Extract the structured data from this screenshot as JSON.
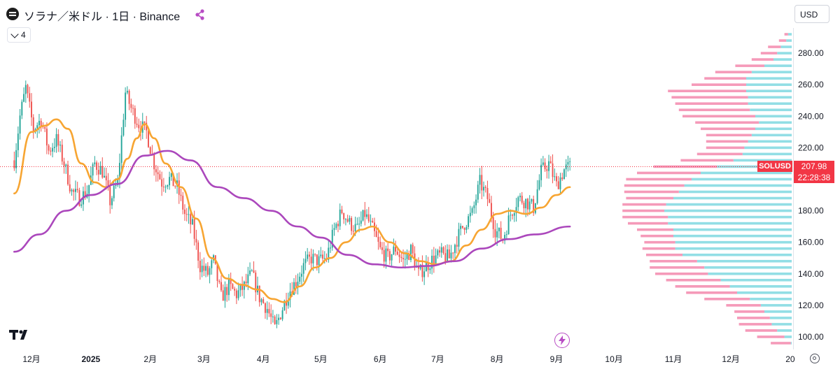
{
  "header": {
    "title": "ソラナ／米ドル · 1日 · Binance",
    "indicator_count": "4",
    "currency": "USD"
  },
  "last_price": {
    "symbol_label": "SOLUSD",
    "price": "207.98",
    "countdown": "22:28:38"
  },
  "colors": {
    "up": "#26a69a",
    "down": "#ef5350",
    "ma_fast": "#f7a532",
    "ma_slow": "#ab47bc",
    "vp_up": "#7fd8e0",
    "vp_down": "#f48fb1",
    "price_line": "#f23645"
  },
  "icons": [
    "solana-logo-icon",
    "share-icon",
    "chevron-down-icon",
    "tradingview-logo-icon",
    "lightning-icon",
    "settings-icon"
  ],
  "chart_data": {
    "type": "candlestick",
    "title": "ソラナ／米ドル · 1日 · Binance",
    "ylim": [
      92,
      296
    ],
    "y_ticks": [
      100,
      120,
      140,
      160,
      180,
      200,
      220,
      240,
      260,
      280
    ],
    "y_tick_labels": [
      "100.00",
      "120.00",
      "140.00",
      "160.00",
      "180.00",
      "200.00",
      "220.00",
      "240.00",
      "260.00",
      "280.00"
    ],
    "x_tick_labels": [
      "12月",
      "2025",
      "2月",
      "3月",
      "4月",
      "5月",
      "6月",
      "7月",
      "8月",
      "9月",
      "10月",
      "11月",
      "12月",
      "20"
    ],
    "close_path": [
      [
        "2024-11-22",
        212
      ],
      [
        "2024-11-25",
        240
      ],
      [
        "2024-11-28",
        258
      ],
      [
        "2024-12-02",
        232
      ],
      [
        "2024-12-06",
        238
      ],
      [
        "2024-12-10",
        218
      ],
      [
        "2024-12-14",
        225
      ],
      [
        "2024-12-18",
        210
      ],
      [
        "2024-12-22",
        192
      ],
      [
        "2024-12-26",
        188
      ],
      [
        "2024-12-30",
        192
      ],
      [
        "2025-01-03",
        210
      ],
      [
        "2025-01-07",
        205
      ],
      [
        "2025-01-11",
        186
      ],
      [
        "2025-01-15",
        198
      ],
      [
        "2025-01-19",
        255
      ],
      [
        "2025-01-22",
        245
      ],
      [
        "2025-01-26",
        235
      ],
      [
        "2025-01-30",
        230
      ],
      [
        "2025-02-03",
        210
      ],
      [
        "2025-02-07",
        198
      ],
      [
        "2025-02-11",
        200
      ],
      [
        "2025-02-15",
        195
      ],
      [
        "2025-02-19",
        178
      ],
      [
        "2025-02-23",
        170
      ],
      [
        "2025-02-27",
        145
      ],
      [
        "2025-03-03",
        140
      ],
      [
        "2025-03-06",
        148
      ],
      [
        "2025-03-10",
        125
      ],
      [
        "2025-03-14",
        132
      ],
      [
        "2025-03-18",
        127
      ],
      [
        "2025-03-22",
        132
      ],
      [
        "2025-03-26",
        140
      ],
      [
        "2025-03-30",
        125
      ],
      [
        "2025-04-03",
        118
      ],
      [
        "2025-04-07",
        105
      ],
      [
        "2025-04-10",
        115
      ],
      [
        "2025-04-14",
        128
      ],
      [
        "2025-04-18",
        135
      ],
      [
        "2025-04-22",
        145
      ],
      [
        "2025-04-26",
        150
      ],
      [
        "2025-04-30",
        148
      ],
      [
        "2025-05-04",
        150
      ],
      [
        "2025-05-08",
        168
      ],
      [
        "2025-05-12",
        180
      ],
      [
        "2025-05-16",
        172
      ],
      [
        "2025-05-20",
        168
      ],
      [
        "2025-05-24",
        178
      ],
      [
        "2025-05-28",
        168
      ],
      [
        "2025-06-01",
        155
      ],
      [
        "2025-06-05",
        150
      ],
      [
        "2025-06-09",
        156
      ],
      [
        "2025-06-13",
        148
      ],
      [
        "2025-06-17",
        155
      ],
      [
        "2025-06-21",
        140
      ],
      [
        "2025-06-25",
        145
      ],
      [
        "2025-06-29",
        150
      ],
      [
        "2025-07-03",
        152
      ],
      [
        "2025-07-07",
        150
      ],
      [
        "2025-07-11",
        162
      ],
      [
        "2025-07-15",
        172
      ],
      [
        "2025-07-19",
        178
      ],
      [
        "2025-07-23",
        198
      ],
      [
        "2025-07-27",
        188
      ],
      [
        "2025-07-31",
        168
      ],
      [
        "2025-08-04",
        162
      ],
      [
        "2025-08-08",
        178
      ],
      [
        "2025-08-12",
        188
      ],
      [
        "2025-08-16",
        186
      ],
      [
        "2025-08-20",
        182
      ],
      [
        "2025-08-24",
        205
      ],
      [
        "2025-08-28",
        210
      ],
      [
        "2025-09-01",
        196
      ],
      [
        "2025-09-05",
        206
      ],
      [
        "2025-09-08",
        208
      ]
    ],
    "series": [
      {
        "name": "",
        "type": "line",
        "values": [
          [
            "2024-11-22",
            191
          ],
          [
            "2024-12-01",
            230
          ],
          [
            "2024-12-08",
            234
          ],
          [
            "2024-12-14",
            238
          ],
          [
            "2024-12-20",
            232
          ],
          [
            "2024-12-27",
            210
          ],
          [
            "2025-01-03",
            198
          ],
          [
            "2025-01-09",
            195
          ],
          [
            "2025-01-15",
            200
          ],
          [
            "2025-01-20",
            213
          ],
          [
            "2025-01-25",
            226
          ],
          [
            "2025-01-29",
            235
          ],
          [
            "2025-02-03",
            226
          ],
          [
            "2025-02-09",
            210
          ],
          [
            "2025-02-17",
            195
          ],
          [
            "2025-02-25",
            175
          ],
          [
            "2025-03-05",
            150
          ],
          [
            "2025-03-13",
            137
          ],
          [
            "2025-03-21",
            133
          ],
          [
            "2025-03-29",
            130
          ],
          [
            "2025-04-06",
            124
          ],
          [
            "2025-04-12",
            122
          ],
          [
            "2025-04-20",
            132
          ],
          [
            "2025-04-28",
            144
          ],
          [
            "2025-05-06",
            150
          ],
          [
            "2025-05-14",
            160
          ],
          [
            "2025-05-22",
            168
          ],
          [
            "2025-05-28",
            170
          ],
          [
            "2025-06-06",
            160
          ],
          [
            "2025-06-14",
            153
          ],
          [
            "2025-06-22",
            148
          ],
          [
            "2025-06-30",
            146
          ],
          [
            "2025-07-08",
            148
          ],
          [
            "2025-07-16",
            158
          ],
          [
            "2025-07-24",
            168
          ],
          [
            "2025-08-01",
            178
          ],
          [
            "2025-08-08",
            180
          ],
          [
            "2025-08-16",
            178
          ],
          [
            "2025-08-24",
            182
          ],
          [
            "2025-09-01",
            190
          ],
          [
            "2025-09-08",
            195
          ]
        ]
      },
      {
        "name": "",
        "type": "line",
        "values": [
          [
            "2024-11-22",
            154
          ],
          [
            "2024-12-05",
            165
          ],
          [
            "2024-12-19",
            180
          ],
          [
            "2025-01-01",
            190
          ],
          [
            "2025-01-15",
            197
          ],
          [
            "2025-01-29",
            215
          ],
          [
            "2025-02-10",
            218
          ],
          [
            "2025-02-22",
            212
          ],
          [
            "2025-03-08",
            195
          ],
          [
            "2025-03-22",
            188
          ],
          [
            "2025-04-05",
            180
          ],
          [
            "2025-04-19",
            170
          ],
          [
            "2025-05-01",
            163
          ],
          [
            "2025-05-15",
            152
          ],
          [
            "2025-05-29",
            146
          ],
          [
            "2025-06-12",
            144
          ],
          [
            "2025-06-26",
            145
          ],
          [
            "2025-07-10",
            148
          ],
          [
            "2025-07-24",
            156
          ],
          [
            "2025-08-07",
            162
          ],
          [
            "2025-08-21",
            165
          ],
          [
            "2025-09-08",
            170
          ]
        ]
      }
    ],
    "volume_profile": [
      [
        96,
        1,
        22
      ],
      [
        100,
        8,
        30
      ],
      [
        104,
        16,
        35
      ],
      [
        108,
        22,
        36
      ],
      [
        112,
        24,
        36
      ],
      [
        116,
        30,
        33
      ],
      [
        120,
        34,
        38
      ],
      [
        124,
        46,
        50
      ],
      [
        128,
        60,
        56
      ],
      [
        132,
        68,
        60
      ],
      [
        136,
        78,
        60
      ],
      [
        140,
        92,
        58
      ],
      [
        144,
        96,
        60
      ],
      [
        148,
        104,
        52
      ],
      [
        152,
        120,
        40
      ],
      [
        156,
        128,
        36
      ],
      [
        160,
        128,
        34
      ],
      [
        164,
        130,
        36
      ],
      [
        168,
        130,
        40
      ],
      [
        172,
        136,
        44
      ],
      [
        176,
        136,
        50
      ],
      [
        180,
        140,
        46
      ],
      [
        184,
        138,
        48
      ],
      [
        188,
        130,
        52
      ],
      [
        192,
        124,
        60
      ],
      [
        196,
        118,
        66
      ],
      [
        200,
        110,
        72
      ],
      [
        204,
        100,
        70
      ],
      [
        208,
        82,
        70
      ],
      [
        212,
        64,
        58
      ],
      [
        216,
        54,
        50
      ],
      [
        220,
        52,
        42
      ],
      [
        224,
        48,
        46
      ],
      [
        228,
        44,
        50
      ],
      [
        232,
        40,
        60
      ],
      [
        236,
        36,
        70
      ],
      [
        240,
        40,
        80
      ],
      [
        244,
        46,
        78
      ],
      [
        248,
        48,
        80
      ],
      [
        252,
        48,
        84
      ],
      [
        256,
        50,
        86
      ],
      [
        260,
        50,
        60
      ],
      [
        264,
        50,
        46
      ],
      [
        268,
        44,
        40
      ],
      [
        272,
        30,
        32
      ],
      [
        276,
        20,
        24
      ],
      [
        280,
        16,
        18
      ],
      [
        284,
        12,
        14
      ],
      [
        288,
        6,
        8
      ],
      [
        292,
        4,
        4
      ]
    ],
    "grid": false
  }
}
